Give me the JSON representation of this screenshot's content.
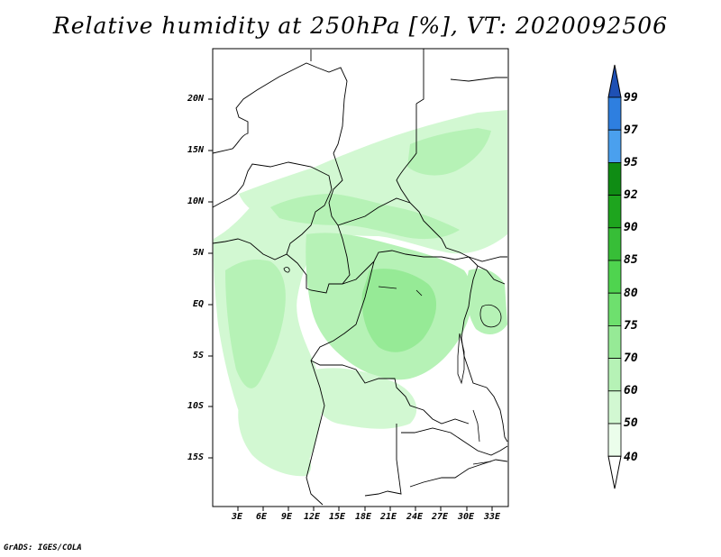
{
  "title": "Relative humidity at 250hPa [%], VT: 2020092506",
  "credit": "GrADS: IGES/COLA",
  "map": {
    "region": "Central Africa",
    "lat_ticks": [
      "20N",
      "15N",
      "10N",
      "5N",
      "EQ",
      "5S",
      "10S",
      "15S"
    ],
    "lon_ticks": [
      "3E",
      "6E",
      "9E",
      "12E",
      "15E",
      "18E",
      "21E",
      "24E",
      "27E",
      "30E",
      "33E"
    ]
  },
  "colorbar": {
    "levels": [
      "99",
      "97",
      "95",
      "92",
      "90",
      "85",
      "80",
      "75",
      "70",
      "60",
      "50",
      "40"
    ],
    "colors": [
      "#1e5fc8",
      "#2e7fe0",
      "#4aa0ee",
      "#0f8c14",
      "#1ea51e",
      "#37be37",
      "#4fd44f",
      "#6ee06e",
      "#96ea96",
      "#b6f2b6",
      "#d2f8d2",
      "#ebfdeb"
    ],
    "top_color": "#1e50b4",
    "bottom_color": "#ffffff"
  }
}
